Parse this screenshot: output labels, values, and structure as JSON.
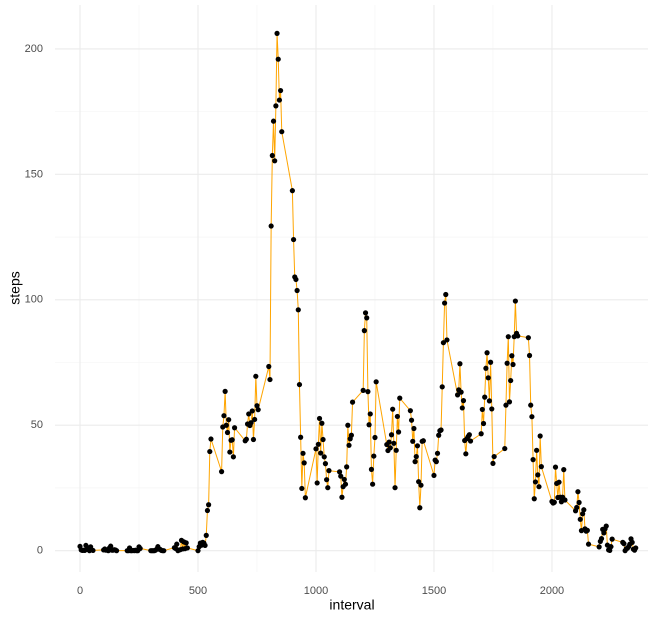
{
  "chart_data": {
    "type": "line",
    "x_label": "interval",
    "y_label": "steps",
    "line_color": "#ffa500",
    "point_color": "#000000",
    "grid": true,
    "xlim": [
      -106,
      2407
    ],
    "ylim": [
      -8.5,
      217.5
    ],
    "xticks": [
      0,
      500,
      1000,
      1500,
      2000
    ],
    "yticks": [
      0,
      50,
      100,
      150,
      200
    ],
    "x": [
      0,
      5,
      10,
      15,
      20,
      25,
      30,
      35,
      40,
      45,
      50,
      55,
      100,
      105,
      110,
      115,
      120,
      125,
      130,
      135,
      140,
      145,
      150,
      155,
      200,
      205,
      210,
      215,
      220,
      225,
      230,
      235,
      240,
      245,
      250,
      255,
      300,
      305,
      310,
      315,
      320,
      325,
      330,
      335,
      340,
      345,
      350,
      355,
      400,
      405,
      410,
      415,
      420,
      425,
      430,
      435,
      440,
      445,
      450,
      455,
      500,
      505,
      510,
      515,
      520,
      525,
      530,
      535,
      540,
      545,
      550,
      555,
      600,
      605,
      610,
      615,
      620,
      625,
      630,
      635,
      640,
      645,
      650,
      655,
      700,
      705,
      710,
      715,
      720,
      725,
      730,
      735,
      740,
      745,
      750,
      755,
      800,
      805,
      810,
      815,
      820,
      825,
      830,
      835,
      840,
      845,
      850,
      855,
      900,
      905,
      910,
      915,
      920,
      925,
      930,
      935,
      940,
      945,
      950,
      955,
      1000,
      1005,
      1010,
      1015,
      1020,
      1025,
      1030,
      1035,
      1040,
      1045,
      1050,
      1055,
      1100,
      1105,
      1110,
      1115,
      1120,
      1125,
      1130,
      1135,
      1140,
      1145,
      1150,
      1155,
      1200,
      1205,
      1210,
      1215,
      1220,
      1225,
      1230,
      1235,
      1240,
      1245,
      1250,
      1255,
      1300,
      1305,
      1310,
      1315,
      1320,
      1325,
      1330,
      1335,
      1340,
      1345,
      1350,
      1355,
      1400,
      1405,
      1410,
      1415,
      1420,
      1425,
      1430,
      1435,
      1440,
      1445,
      1450,
      1455,
      1500,
      1505,
      1510,
      1515,
      1520,
      1525,
      1530,
      1535,
      1540,
      1545,
      1550,
      1555,
      1600,
      1605,
      1610,
      1615,
      1620,
      1625,
      1630,
      1635,
      1640,
      1645,
      1650,
      1655,
      1700,
      1705,
      1710,
      1715,
      1720,
      1725,
      1730,
      1735,
      1740,
      1745,
      1750,
      1755,
      1800,
      1805,
      1810,
      1815,
      1820,
      1825,
      1830,
      1835,
      1840,
      1845,
      1850,
      1855,
      1900,
      1905,
      1910,
      1915,
      1920,
      1925,
      1930,
      1935,
      1940,
      1945,
      1950,
      1955,
      2000,
      2005,
      2010,
      2015,
      2020,
      2025,
      2030,
      2035,
      2040,
      2045,
      2050,
      2055,
      2100,
      2105,
      2110,
      2115,
      2120,
      2125,
      2130,
      2135,
      2140,
      2145,
      2150,
      2155,
      2200,
      2205,
      2210,
      2215,
      2220,
      2225,
      2230,
      2235,
      2240,
      2245,
      2250,
      2255,
      2300,
      2305,
      2310,
      2315,
      2320,
      2325,
      2330,
      2335,
      2340,
      2345,
      2350,
      2355
    ],
    "values": [
      1.7,
      0.3,
      0.1,
      0.2,
      0.1,
      2.1,
      0.5,
      0.9,
      0,
      1.5,
      0.3,
      0.1,
      0.3,
      0.7,
      0.2,
      0.3,
      0,
      1.1,
      1.8,
      0.2,
      0.2,
      0.4,
      0.3,
      0,
      0,
      0,
      1.1,
      0,
      0,
      0.1,
      0,
      0.2,
      0,
      0,
      1.5,
      0.9,
      0,
      0,
      0,
      0,
      0.2,
      0.6,
      1.6,
      0.6,
      0.5,
      0.1,
      0,
      0,
      1.2,
      0.9,
      2.6,
      0,
      0.3,
      0.4,
      4.1,
      0.7,
      3.5,
      0.8,
      3.1,
      1.1,
      0,
      1.6,
      3,
      2.2,
      3.3,
      3,
      2.1,
      6.1,
      16,
      18.3,
      39.5,
      44.5,
      31.5,
      49.3,
      53.8,
      63.5,
      50,
      47.1,
      52.2,
      39.3,
      44,
      44.2,
      37.4,
      49,
      43.8,
      44.4,
      50.5,
      54.5,
      49.9,
      51,
      55.7,
      44.3,
      52.3,
      69.5,
      57.8,
      56.2,
      73.4,
      68.2,
      129.4,
      157.5,
      171.2,
      155.4,
      177.3,
      206.2,
      195.9,
      179.6,
      183.4,
      167,
      143.5,
      124,
      109.1,
      108.1,
      103.7,
      96,
      66.2,
      45.2,
      24.8,
      38.8,
      35,
      21.1,
      40.6,
      27,
      42.4,
      52.7,
      38.9,
      50.8,
      44.3,
      37.4,
      34.7,
      28.3,
      25.1,
      31.9,
      31.4,
      29.7,
      21.3,
      25.5,
      28.4,
      26.5,
      33.4,
      50,
      42,
      44.6,
      46,
      59.2,
      63.9,
      87.7,
      94.8,
      92.8,
      63.4,
      50.2,
      54.5,
      32.4,
      26.5,
      37.7,
      45.1,
      67.3,
      42.3,
      39.9,
      43.3,
      41,
      46.2,
      56.4,
      42.8,
      25.1,
      40,
      53.5,
      47.3,
      60.8,
      55.8,
      52,
      43.6,
      48.7,
      35.5,
      37.5,
      41.8,
      27.5,
      17.1,
      26.1,
      43.6,
      43.8,
      30,
      36.1,
      35.5,
      38.8,
      46,
      47.8,
      48.1,
      65.3,
      82.9,
      98.7,
      102.1,
      84,
      62.1,
      64.1,
      74.5,
      63.2,
      56.9,
      59.8,
      43.9,
      38.6,
      44.7,
      45.5,
      46.2,
      43.7,
      46.6,
      56.3,
      50.7,
      61.2,
      72.7,
      78.9,
      68.9,
      59.7,
      75.1,
      56.5,
      34.8,
      37.5,
      40.7,
      58,
      74.7,
      85.3,
      59.3,
      67.8,
      77.7,
      74.2,
      85.3,
      99.5,
      86.6,
      85.6,
      84.9,
      77.8,
      58,
      53.4,
      36.3,
      20.7,
      27.4,
      40,
      30.2,
      25.5,
      45.7,
      33.5,
      19.6,
      19,
      19.3,
      33.3,
      26.8,
      21.2,
      27.3,
      21.3,
      19.5,
      21.3,
      32.3,
      20.2,
      15.9,
      17.2,
      23.5,
      19.2,
      12.5,
      8,
      14.7,
      16.3,
      8.7,
      7.8,
      8.1,
      2.6,
      1.5,
      3.7,
      4.8,
      8.5,
      7.1,
      8.7,
      9.8,
      2.2,
      0.3,
      0.1,
      1.6,
      4.6,
      3.3,
      2.8,
      0,
      0.8,
      1,
      1.6,
      2.6,
      4.7,
      3.3,
      0.6,
      0.2,
      1.1
    ]
  }
}
